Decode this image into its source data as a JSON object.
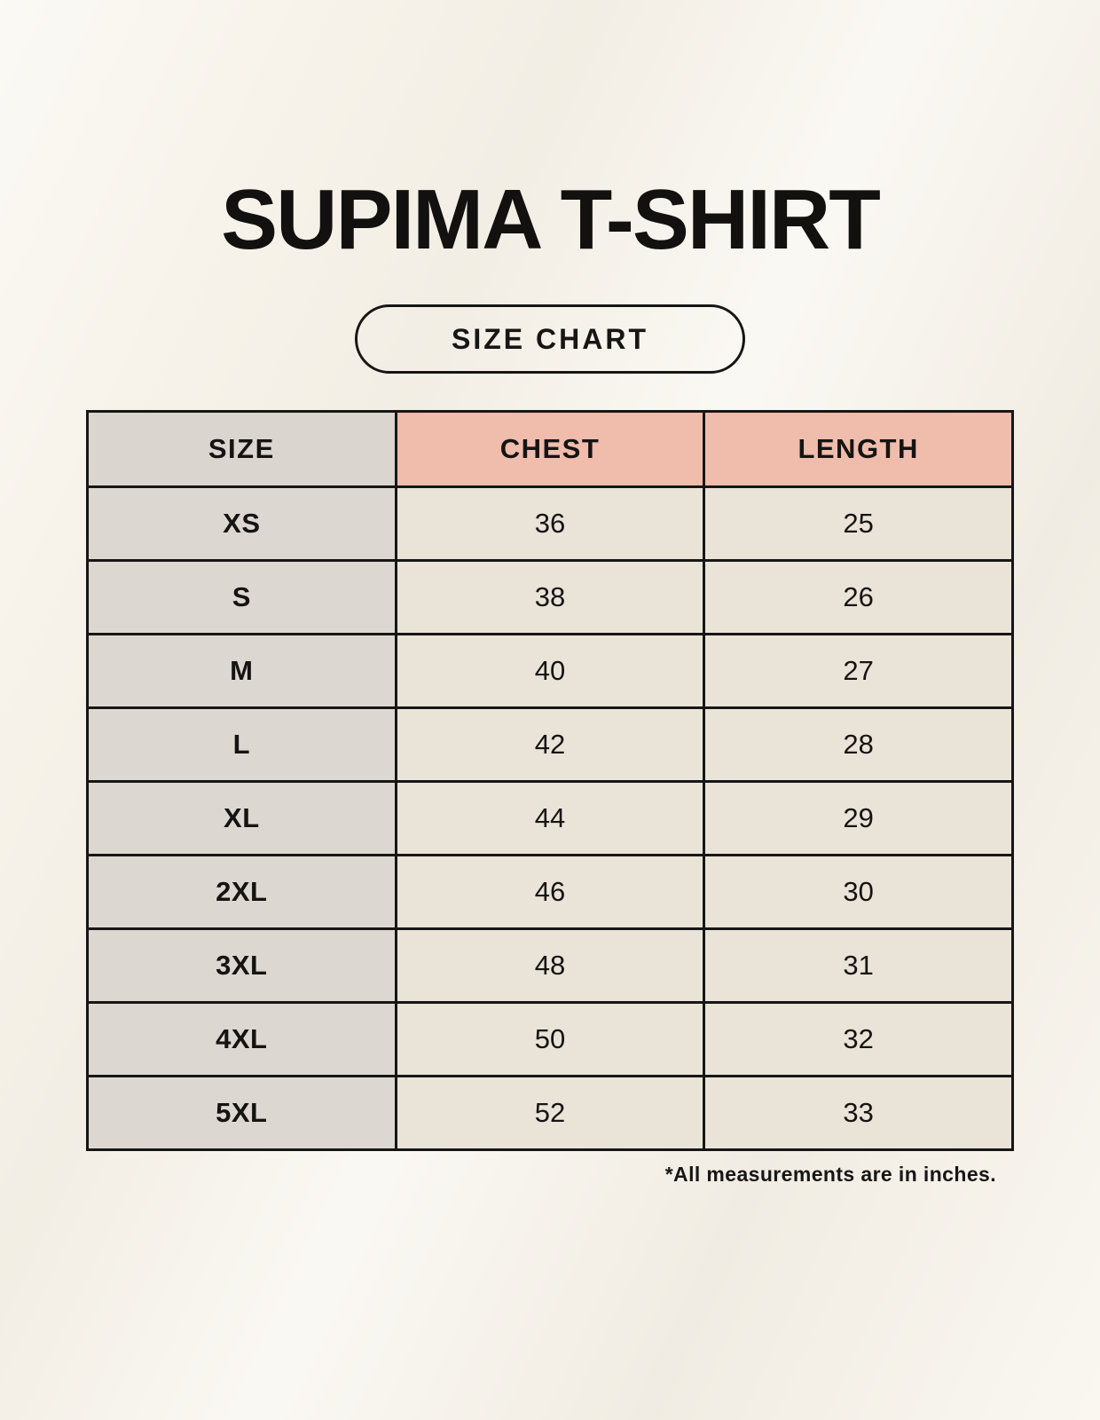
{
  "page": {
    "title": "SUPIMA T-SHIRT",
    "badge_label": "SIZE CHART",
    "footnote": "*All measurements are in inches."
  },
  "colors": {
    "page_background": "#F7F3EA",
    "header_size_bg": "#DBD5D0",
    "header_measurement_bg": "#F0BCAC",
    "cell_size_bg": "#DDD7D2",
    "cell_value_bg": "#EAE3D8",
    "table_border": "#161616",
    "text": "#151413"
  },
  "chart_data": {
    "type": "table",
    "title": "SUPIMA T-SHIRT",
    "subtitle": "SIZE CHART",
    "units": "inches",
    "columns": [
      "SIZE",
      "CHEST",
      "LENGTH"
    ],
    "rows": [
      [
        "XS",
        36,
        25
      ],
      [
        "S",
        38,
        26
      ],
      [
        "M",
        40,
        27
      ],
      [
        "L",
        42,
        28
      ],
      [
        "XL",
        44,
        29
      ],
      [
        "2XL",
        46,
        30
      ],
      [
        "3XL",
        48,
        31
      ],
      [
        "4XL",
        50,
        32
      ],
      [
        "5XL",
        52,
        33
      ]
    ],
    "note": "*All measurements are in inches."
  }
}
